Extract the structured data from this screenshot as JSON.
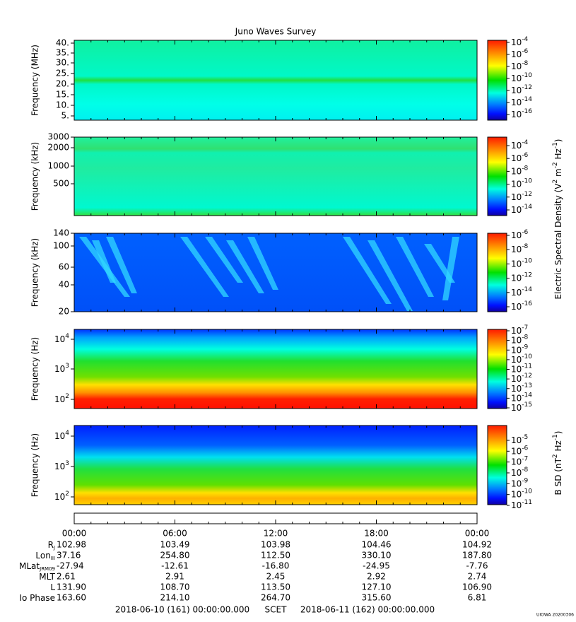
{
  "title": "Juno Waves Survey",
  "panels": [
    {
      "ylabel": "Frequency (MHz)",
      "yticks": [
        "40.",
        "35.",
        "30.",
        "25.",
        "20.",
        "15.",
        "10.",
        "5."
      ],
      "cbar_ticks": [
        {
          "base": "10",
          "exp": "-4"
        },
        {
          "base": "10",
          "exp": "-6"
        },
        {
          "base": "10",
          "exp": "-8"
        },
        {
          "base": "10",
          "exp": "-10"
        },
        {
          "base": "10",
          "exp": "-12"
        },
        {
          "base": "10",
          "exp": "-14"
        },
        {
          "base": "10",
          "exp": "-16"
        }
      ]
    },
    {
      "ylabel": "Frequency (kHz)",
      "yticks": [
        "3000",
        "2000",
        "1000",
        "500"
      ],
      "cbar_ticks": [
        {
          "base": "10",
          "exp": "-4"
        },
        {
          "base": "10",
          "exp": "-6"
        },
        {
          "base": "10",
          "exp": "-8"
        },
        {
          "base": "10",
          "exp": "-10"
        },
        {
          "base": "10",
          "exp": "-12"
        },
        {
          "base": "10",
          "exp": "-14"
        }
      ]
    },
    {
      "ylabel": "Frequency (kHz)",
      "yticks": [
        "140",
        "100",
        "60",
        "40",
        "20"
      ],
      "cbar_ticks": [
        {
          "base": "10",
          "exp": "-6"
        },
        {
          "base": "10",
          "exp": "-8"
        },
        {
          "base": "10",
          "exp": "-10"
        },
        {
          "base": "10",
          "exp": "-12"
        },
        {
          "base": "10",
          "exp": "-14"
        },
        {
          "base": "10",
          "exp": "-16"
        }
      ]
    },
    {
      "ylabel": "Frequency (Hz)",
      "yticks": [
        {
          "base": "10",
          "exp": "4"
        },
        {
          "base": "10",
          "exp": "3"
        },
        {
          "base": "10",
          "exp": "2"
        }
      ],
      "cbar_ticks": [
        {
          "base": "10",
          "exp": "-7"
        },
        {
          "base": "10",
          "exp": "-8"
        },
        {
          "base": "10",
          "exp": "-9"
        },
        {
          "base": "10",
          "exp": "-10"
        },
        {
          "base": "10",
          "exp": "-11"
        },
        {
          "base": "10",
          "exp": "-12"
        },
        {
          "base": "10",
          "exp": "-13"
        },
        {
          "base": "10",
          "exp": "-14"
        },
        {
          "base": "10",
          "exp": "-15"
        }
      ]
    },
    {
      "ylabel": "Frequency (Hz)",
      "yticks": [
        {
          "base": "10",
          "exp": "4"
        },
        {
          "base": "10",
          "exp": "3"
        },
        {
          "base": "10",
          "exp": "2"
        }
      ],
      "cbar_ticks": [
        {
          "base": "10",
          "exp": "-5"
        },
        {
          "base": "10",
          "exp": "-6"
        },
        {
          "base": "10",
          "exp": "-7"
        },
        {
          "base": "10",
          "exp": "-8"
        },
        {
          "base": "10",
          "exp": "-9"
        },
        {
          "base": "10",
          "exp": "-10"
        },
        {
          "base": "10",
          "exp": "-11"
        }
      ]
    }
  ],
  "electric_label": [
    {
      "t": "Electric Spectral Density (V"
    },
    {
      "t": "2",
      "sup": true
    },
    {
      "t": " m"
    },
    {
      "t": "-2",
      "sup": true
    },
    {
      "t": " Hz"
    },
    {
      "t": "-1",
      "sup": true
    },
    {
      "t": ")"
    }
  ],
  "magnetic_label": [
    {
      "t": "B SD (nT"
    },
    {
      "t": "2",
      "sup": true
    },
    {
      "t": " Hz"
    },
    {
      "t": "-1",
      "sup": true
    },
    {
      "t": ")"
    }
  ],
  "ephemeris": {
    "times": [
      "00:00",
      "06:00",
      "12:00",
      "18:00",
      "00:00"
    ],
    "rows": [
      {
        "label": "R",
        "sub": "J",
        "values": [
          "102.98",
          "103.49",
          "103.98",
          "104.46",
          "104.92"
        ]
      },
      {
        "label": "Lon",
        "sub": "III",
        "values": [
          "37.16",
          "254.80",
          "112.50",
          "330.10",
          "187.80"
        ]
      },
      {
        "label": "MLat",
        "sub": "JRM09",
        "values": [
          "-27.94",
          "-12.61",
          "-16.80",
          "-24.95",
          "-7.76"
        ]
      },
      {
        "label": "MLT",
        "values": [
          "2.61",
          "2.91",
          "2.45",
          "2.92",
          "2.74"
        ]
      },
      {
        "label": "L",
        "values": [
          "131.90",
          "108.70",
          "113.50",
          "127.10",
          "106.90"
        ]
      },
      {
        "label": "Io Phase",
        "values": [
          "163.60",
          "214.10",
          "264.70",
          "315.60",
          "6.81"
        ]
      }
    ]
  },
  "footer": {
    "start": "2018-06-10 (161) 00:00:00.000",
    "scet": "SCET",
    "end": "2018-06-11 (162) 00:00:00.000"
  },
  "stamp": "UIOWA 20200306"
}
